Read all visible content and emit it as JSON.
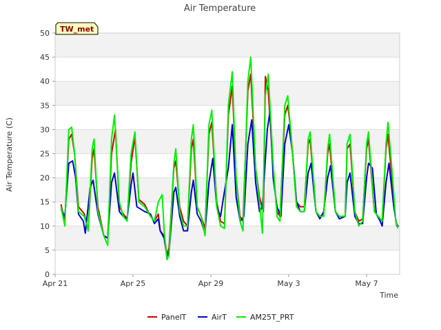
{
  "chart_data": {
    "type": "line",
    "title": "Air Temperature",
    "xlabel": "Time",
    "ylabel": "Air Temperature (C)",
    "ylim": [
      0,
      50
    ],
    "yticks": [
      0,
      5,
      10,
      15,
      20,
      25,
      30,
      35,
      40,
      45,
      50
    ],
    "xlim": [
      0,
      17.7
    ],
    "xticks": [
      {
        "x": 0,
        "label": "Apr 21"
      },
      {
        "x": 4,
        "label": "Apr 25"
      },
      {
        "x": 8,
        "label": "Apr 29"
      },
      {
        "x": 12,
        "label": "May 3"
      },
      {
        "x": 16,
        "label": "May 7"
      }
    ],
    "grid": true,
    "legend_position": "bottom",
    "station_badge": "TW_met",
    "series": [
      {
        "name": "PanelT",
        "color": "#cc0000",
        "points": [
          [
            0.3,
            14.5
          ],
          [
            0.5,
            11
          ],
          [
            0.7,
            28
          ],
          [
            0.85,
            29
          ],
          [
            1.0,
            25
          ],
          [
            1.2,
            14
          ],
          [
            1.5,
            12.5
          ],
          [
            1.7,
            9
          ],
          [
            1.9,
            24
          ],
          [
            2.0,
            26
          ],
          [
            2.2,
            14
          ],
          [
            2.5,
            8
          ],
          [
            2.7,
            7.5
          ],
          [
            2.9,
            25
          ],
          [
            3.1,
            30
          ],
          [
            3.3,
            14
          ],
          [
            3.5,
            12.5
          ],
          [
            3.7,
            11.5
          ],
          [
            3.9,
            23
          ],
          [
            4.1,
            28.5
          ],
          [
            4.3,
            15.5
          ],
          [
            4.6,
            14.5
          ],
          [
            4.9,
            12
          ],
          [
            5.1,
            11
          ],
          [
            5.3,
            12.5
          ],
          [
            5.4,
            9
          ],
          [
            5.6,
            8
          ],
          [
            5.75,
            4
          ],
          [
            5.85,
            5.5
          ],
          [
            6.1,
            22
          ],
          [
            6.2,
            23.5
          ],
          [
            6.4,
            14
          ],
          [
            6.6,
            11
          ],
          [
            6.8,
            10
          ],
          [
            7.0,
            26
          ],
          [
            7.1,
            28
          ],
          [
            7.3,
            14
          ],
          [
            7.5,
            12
          ],
          [
            7.7,
            9.5
          ],
          [
            7.9,
            29
          ],
          [
            8.05,
            31.5
          ],
          [
            8.3,
            15
          ],
          [
            8.5,
            11
          ],
          [
            8.7,
            10.5
          ],
          [
            8.9,
            33
          ],
          [
            9.1,
            39
          ],
          [
            9.3,
            20
          ],
          [
            9.5,
            12
          ],
          [
            9.65,
            11
          ],
          [
            9.9,
            38
          ],
          [
            10.05,
            41.5
          ],
          [
            10.3,
            22
          ],
          [
            10.5,
            16
          ],
          [
            10.7,
            13
          ],
          [
            10.8,
            41
          ],
          [
            10.95,
            38
          ],
          [
            11.2,
            22
          ],
          [
            11.4,
            13
          ],
          [
            11.55,
            12
          ],
          [
            11.8,
            33
          ],
          [
            11.95,
            35
          ],
          [
            12.1,
            30
          ],
          [
            12.4,
            15
          ],
          [
            12.6,
            14
          ],
          [
            12.8,
            14
          ],
          [
            13.0,
            27
          ],
          [
            13.1,
            28
          ],
          [
            13.4,
            13
          ],
          [
            13.6,
            12
          ],
          [
            13.8,
            12.5
          ],
          [
            14.0,
            25
          ],
          [
            14.1,
            27
          ],
          [
            14.4,
            13
          ],
          [
            14.6,
            12
          ],
          [
            14.9,
            12
          ],
          [
            15.0,
            26
          ],
          [
            15.15,
            27
          ],
          [
            15.4,
            13
          ],
          [
            15.6,
            11
          ],
          [
            15.8,
            11.5
          ],
          [
            16.0,
            26
          ],
          [
            16.1,
            28
          ],
          [
            16.4,
            13
          ],
          [
            16.6,
            12
          ],
          [
            16.8,
            11
          ],
          [
            17.0,
            26
          ],
          [
            17.1,
            29
          ],
          [
            17.3,
            20
          ],
          [
            17.5,
            11
          ],
          [
            17.6,
            10
          ]
        ]
      },
      {
        "name": "AirT",
        "color": "#0000cc",
        "points": [
          [
            0.3,
            13.5
          ],
          [
            0.5,
            12
          ],
          [
            0.7,
            23
          ],
          [
            0.9,
            23.5
          ],
          [
            1.05,
            20
          ],
          [
            1.2,
            12.5
          ],
          [
            1.45,
            11
          ],
          [
            1.55,
            8.5
          ],
          [
            1.8,
            18
          ],
          [
            1.95,
            19.5
          ],
          [
            2.2,
            12.5
          ],
          [
            2.5,
            8
          ],
          [
            2.7,
            7.5
          ],
          [
            2.9,
            19
          ],
          [
            3.05,
            21
          ],
          [
            3.3,
            13
          ],
          [
            3.5,
            12
          ],
          [
            3.7,
            11.5
          ],
          [
            3.9,
            18.5
          ],
          [
            4.0,
            21
          ],
          [
            4.2,
            14
          ],
          [
            4.6,
            13
          ],
          [
            4.9,
            12.5
          ],
          [
            5.1,
            10.5
          ],
          [
            5.3,
            11.5
          ],
          [
            5.4,
            9
          ],
          [
            5.6,
            7.5
          ],
          [
            5.75,
            3.5
          ],
          [
            5.85,
            4.5
          ],
          [
            6.1,
            17
          ],
          [
            6.2,
            18
          ],
          [
            6.4,
            12
          ],
          [
            6.6,
            9
          ],
          [
            6.8,
            9
          ],
          [
            7.0,
            17
          ],
          [
            7.1,
            19.5
          ],
          [
            7.3,
            12.5
          ],
          [
            7.5,
            11
          ],
          [
            7.7,
            8.5
          ],
          [
            7.9,
            19
          ],
          [
            8.1,
            24
          ],
          [
            8.3,
            14
          ],
          [
            8.5,
            12
          ],
          [
            8.65,
            16
          ],
          [
            8.9,
            22
          ],
          [
            9.1,
            31
          ],
          [
            9.3,
            16
          ],
          [
            9.5,
            11
          ],
          [
            9.7,
            12
          ],
          [
            9.9,
            27
          ],
          [
            10.1,
            32
          ],
          [
            10.3,
            19
          ],
          [
            10.5,
            13
          ],
          [
            10.65,
            14
          ],
          [
            10.9,
            30
          ],
          [
            11.05,
            34
          ],
          [
            11.2,
            20
          ],
          [
            11.4,
            14
          ],
          [
            11.6,
            12
          ],
          [
            11.8,
            27
          ],
          [
            12.0,
            31
          ],
          [
            12.2,
            25
          ],
          [
            12.4,
            15
          ],
          [
            12.6,
            13
          ],
          [
            12.8,
            13
          ],
          [
            13.0,
            21
          ],
          [
            13.15,
            23
          ],
          [
            13.4,
            13
          ],
          [
            13.6,
            11.5
          ],
          [
            13.8,
            13
          ],
          [
            14.0,
            20
          ],
          [
            14.15,
            22.5
          ],
          [
            14.4,
            13
          ],
          [
            14.6,
            11.5
          ],
          [
            14.9,
            12
          ],
          [
            15.0,
            19
          ],
          [
            15.15,
            21
          ],
          [
            15.4,
            12
          ],
          [
            15.6,
            10.5
          ],
          [
            15.8,
            10.5
          ],
          [
            16.0,
            20
          ],
          [
            16.1,
            23
          ],
          [
            16.3,
            22
          ],
          [
            16.5,
            12.5
          ],
          [
            16.7,
            11
          ],
          [
            16.8,
            10
          ],
          [
            17.0,
            19
          ],
          [
            17.15,
            23
          ],
          [
            17.4,
            14
          ],
          [
            17.55,
            10
          ],
          [
            17.65,
            10
          ]
        ]
      },
      {
        "name": "AM25T_PRT",
        "color": "#00ee00",
        "points": [
          [
            0.3,
            14
          ],
          [
            0.5,
            10
          ],
          [
            0.7,
            30
          ],
          [
            0.85,
            30.5
          ],
          [
            1.0,
            25
          ],
          [
            1.2,
            13
          ],
          [
            1.5,
            12
          ],
          [
            1.7,
            9
          ],
          [
            1.9,
            26
          ],
          [
            2.0,
            28
          ],
          [
            2.2,
            13
          ],
          [
            2.5,
            8
          ],
          [
            2.7,
            6
          ],
          [
            2.9,
            28
          ],
          [
            3.05,
            33
          ],
          [
            3.3,
            15
          ],
          [
            3.5,
            12
          ],
          [
            3.7,
            11
          ],
          [
            3.9,
            25
          ],
          [
            4.1,
            29.5
          ],
          [
            4.3,
            15
          ],
          [
            4.6,
            14
          ],
          [
            4.9,
            12
          ],
          [
            5.1,
            11
          ],
          [
            5.3,
            15
          ],
          [
            5.5,
            16.5
          ],
          [
            5.6,
            9
          ],
          [
            5.75,
            3
          ],
          [
            5.85,
            4
          ],
          [
            6.1,
            23
          ],
          [
            6.2,
            26
          ],
          [
            6.4,
            13
          ],
          [
            6.6,
            10
          ],
          [
            6.8,
            10
          ],
          [
            7.0,
            28
          ],
          [
            7.1,
            31
          ],
          [
            7.3,
            14
          ],
          [
            7.5,
            12
          ],
          [
            7.7,
            8
          ],
          [
            7.9,
            31
          ],
          [
            8.05,
            34
          ],
          [
            8.3,
            14
          ],
          [
            8.5,
            10
          ],
          [
            8.7,
            9.5
          ],
          [
            8.9,
            35
          ],
          [
            9.1,
            42
          ],
          [
            9.3,
            20
          ],
          [
            9.5,
            11
          ],
          [
            9.65,
            9
          ],
          [
            9.9,
            40
          ],
          [
            10.05,
            45
          ],
          [
            10.3,
            22
          ],
          [
            10.5,
            15
          ],
          [
            10.65,
            8.5
          ],
          [
            10.8,
            37
          ],
          [
            10.95,
            41.5
          ],
          [
            11.2,
            23
          ],
          [
            11.4,
            12
          ],
          [
            11.55,
            11
          ],
          [
            11.8,
            35
          ],
          [
            11.95,
            37
          ],
          [
            12.1,
            30
          ],
          [
            12.4,
            14
          ],
          [
            12.6,
            13
          ],
          [
            12.8,
            13
          ],
          [
            13.0,
            28
          ],
          [
            13.1,
            29.5
          ],
          [
            13.4,
            13
          ],
          [
            13.6,
            12
          ],
          [
            13.8,
            12
          ],
          [
            14.0,
            26
          ],
          [
            14.1,
            29
          ],
          [
            14.4,
            13
          ],
          [
            14.6,
            12
          ],
          [
            14.9,
            12
          ],
          [
            15.0,
            27
          ],
          [
            15.15,
            29
          ],
          [
            15.4,
            13
          ],
          [
            15.6,
            10
          ],
          [
            15.8,
            11
          ],
          [
            16.0,
            27
          ],
          [
            16.1,
            29.5
          ],
          [
            16.4,
            13
          ],
          [
            16.6,
            12
          ],
          [
            16.8,
            11
          ],
          [
            17.0,
            27
          ],
          [
            17.1,
            31.5
          ],
          [
            17.3,
            22
          ],
          [
            17.5,
            11
          ],
          [
            17.6,
            9.5
          ]
        ]
      }
    ]
  }
}
